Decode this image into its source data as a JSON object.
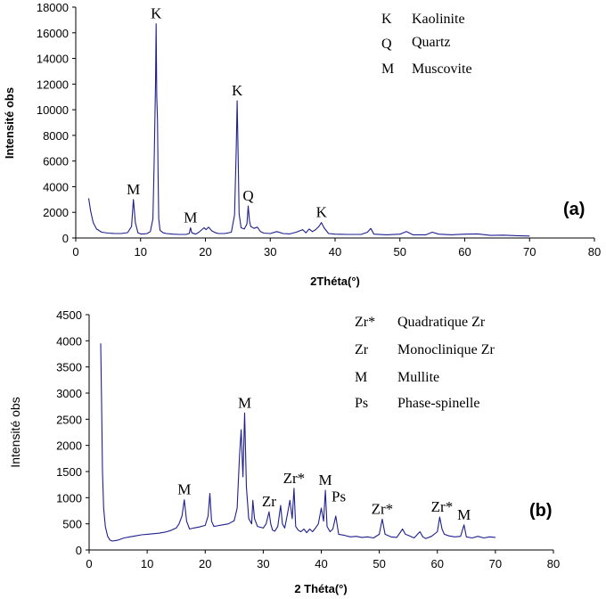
{
  "chart_data": [
    {
      "type": "line",
      "panel_label": "(a)",
      "xlabel": "2Théta(°)",
      "ylabel": "Intensité obs",
      "xlim": [
        0,
        80
      ],
      "ylim": [
        0,
        18000
      ],
      "xticks": [
        0,
        10,
        20,
        30,
        40,
        50,
        60,
        70,
        80
      ],
      "yticks": [
        0,
        2000,
        4000,
        6000,
        8000,
        10000,
        12000,
        14000,
        16000,
        18000
      ],
      "color": "#1f1f8f",
      "legend": [
        {
          "symbol": "K",
          "label": "Kaolinite"
        },
        {
          "symbol": "Q",
          "label": "Quartz"
        },
        {
          "symbol": "M",
          "label": "Muscovite"
        }
      ],
      "annotations": [
        {
          "text": "K",
          "x": 12.4,
          "y": 16700
        },
        {
          "text": "M",
          "x": 8.9,
          "y": 3000
        },
        {
          "text": "M",
          "x": 17.7,
          "y": 800
        },
        {
          "text": "K",
          "x": 24.9,
          "y": 10700
        },
        {
          "text": "Q",
          "x": 26.6,
          "y": 2500
        },
        {
          "text": "K",
          "x": 37.9,
          "y": 1200
        }
      ],
      "series": [
        {
          "x": [
            2,
            2.3,
            2.7,
            3.2,
            4,
            5,
            6,
            7,
            8,
            8.6,
            8.9,
            9.2,
            9.6,
            10,
            10.5,
            11,
            11.5,
            11.9,
            12.1,
            12.3,
            12.4,
            12.5,
            12.6,
            12.7,
            12.8,
            13,
            13.5,
            14,
            15,
            16,
            17,
            17.5,
            17.7,
            17.9,
            18.5,
            19,
            19.8,
            20.1,
            20.5,
            21,
            21.6,
            22,
            23,
            24,
            24.5,
            24.75,
            24.9,
            25.05,
            25.2,
            25.5,
            26,
            26.4,
            26.6,
            26.8,
            27,
            27.5,
            28,
            28.5,
            29,
            30,
            31,
            32,
            33,
            34,
            35,
            35.5,
            36,
            36.5,
            37,
            37.5,
            37.9,
            38.3,
            39,
            40,
            42,
            44,
            45,
            45.5,
            46,
            48,
            50,
            51,
            52,
            54,
            55,
            56,
            58,
            60,
            62,
            64,
            66,
            68,
            70
          ],
          "y": [
            3100,
            2100,
            1200,
            700,
            450,
            380,
            350,
            350,
            420,
            900,
            3000,
            1200,
            400,
            320,
            320,
            350,
            500,
            1500,
            6000,
            12000,
            16700,
            11000,
            9300,
            5000,
            1500,
            600,
            400,
            350,
            300,
            280,
            280,
            350,
            800,
            400,
            300,
            450,
            800,
            650,
            850,
            550,
            400,
            350,
            350,
            450,
            1800,
            7000,
            10700,
            6500,
            1900,
            800,
            700,
            1100,
            2500,
            1300,
            900,
            750,
            850,
            500,
            380,
            350,
            500,
            350,
            320,
            450,
            650,
            400,
            700,
            500,
            650,
            900,
            1200,
            800,
            350,
            300,
            280,
            280,
            450,
            750,
            300,
            250,
            300,
            500,
            250,
            250,
            450,
            300,
            250,
            300,
            320,
            200,
            220,
            180,
            150
          ]
        }
      ]
    },
    {
      "type": "line",
      "panel_label": "(b)",
      "xlabel": "2 Théta(°)",
      "ylabel": "Intensité obs",
      "xlim": [
        0,
        80
      ],
      "ylim": [
        0,
        4500
      ],
      "xticks": [
        0,
        10,
        20,
        30,
        40,
        50,
        60,
        70,
        80
      ],
      "yticks": [
        0,
        500,
        1000,
        1500,
        2000,
        2500,
        3000,
        3500,
        4000,
        4500
      ],
      "color": "#1f1f8f",
      "legend": [
        {
          "symbol": "Zr*",
          "label": "Quadratique Zr"
        },
        {
          "symbol": "Zr",
          "label": "Monoclinique Zr"
        },
        {
          "symbol": "M",
          "label": "Mullite"
        },
        {
          "symbol": "Ps",
          "label": "Phase-spinelle"
        }
      ],
      "annotations": [
        {
          "text": "M",
          "x": 16.4,
          "y": 960
        },
        {
          "text": "M",
          "x": 26.8,
          "y": 2620
        },
        {
          "text": "Zr",
          "x": 31.0,
          "y": 730
        },
        {
          "text": "Zr*",
          "x": 35.3,
          "y": 1180
        },
        {
          "text": "M",
          "x": 40.7,
          "y": 1140
        },
        {
          "text": "Ps",
          "x": 43.0,
          "y": 830
        },
        {
          "text": "Zr*",
          "x": 50.5,
          "y": 590
        },
        {
          "text": "Zr*",
          "x": 60.8,
          "y": 630
        },
        {
          "text": "M",
          "x": 64.6,
          "y": 480
        }
      ],
      "series": [
        {
          "x": [
            2,
            2.15,
            2.3,
            2.5,
            2.8,
            3.2,
            3.6,
            4,
            5,
            6,
            7,
            8,
            9,
            10,
            11,
            12,
            13,
            14,
            15,
            15.5,
            16,
            16.4,
            16.8,
            17.3,
            18,
            19,
            20,
            20.5,
            20.8,
            21.1,
            21.5,
            22,
            23,
            24,
            25,
            25.5,
            25.9,
            26.2,
            26.5,
            26.8,
            27.1,
            27.5,
            28,
            28.2,
            28.5,
            29,
            30,
            30.5,
            31,
            31.3,
            31.6,
            32,
            32.5,
            33,
            33.3,
            33.7,
            34.2,
            34.6,
            35,
            35.3,
            35.6,
            36,
            36.5,
            37,
            37.5,
            38,
            38.5,
            39,
            39.5,
            40,
            40.4,
            40.7,
            41,
            41.5,
            42,
            42.5,
            43,
            44,
            45,
            46,
            47,
            48,
            49,
            50,
            50.5,
            51,
            52,
            53,
            54,
            54.5,
            55,
            56,
            57,
            57.5,
            58,
            59,
            60,
            60.4,
            60.8,
            61.2,
            62,
            63,
            64,
            64.6,
            65,
            66,
            67,
            68,
            69,
            70
          ],
          "y": [
            3950,
            2800,
            1500,
            800,
            450,
            260,
            190,
            170,
            190,
            230,
            250,
            270,
            290,
            300,
            310,
            320,
            340,
            370,
            420,
            500,
            650,
            960,
            550,
            400,
            420,
            440,
            470,
            650,
            1080,
            550,
            450,
            460,
            480,
            500,
            560,
            800,
            1780,
            2300,
            1400,
            2620,
            1200,
            600,
            500,
            950,
            600,
            450,
            420,
            500,
            730,
            500,
            380,
            360,
            450,
            850,
            500,
            420,
            700,
            950,
            600,
            1180,
            450,
            380,
            350,
            400,
            330,
            400,
            350,
            420,
            500,
            800,
            550,
            1140,
            450,
            350,
            400,
            650,
            300,
            280,
            250,
            260,
            240,
            250,
            230,
            300,
            590,
            300,
            250,
            240,
            400,
            300,
            280,
            230,
            350,
            250,
            220,
            260,
            350,
            630,
            400,
            300,
            270,
            250,
            260,
            480,
            250,
            230,
            260,
            230,
            250,
            240
          ]
        }
      ]
    }
  ]
}
